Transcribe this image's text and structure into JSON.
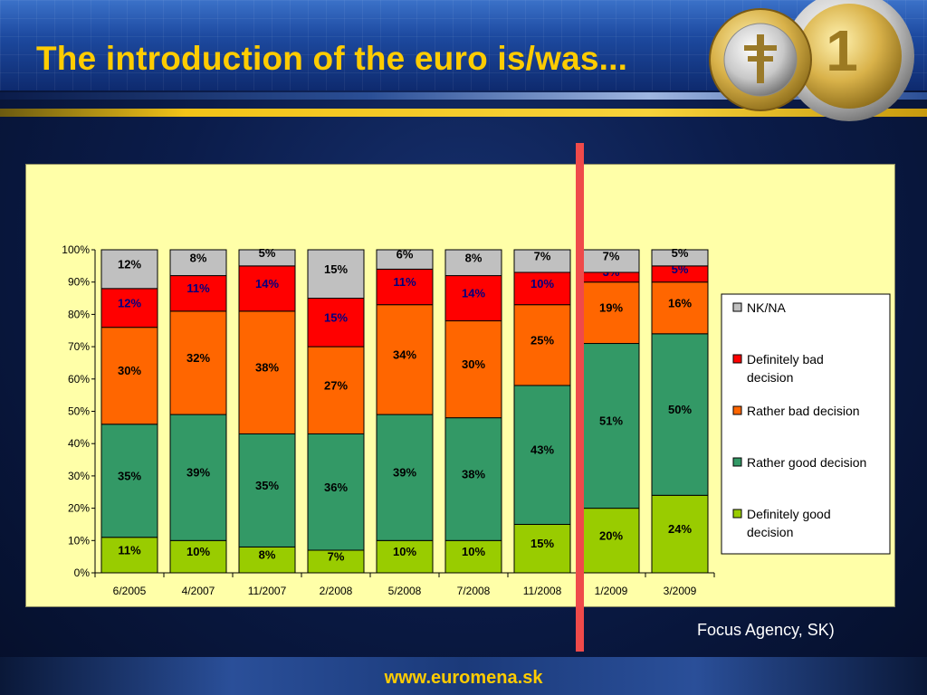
{
  "slide": {
    "title": "The introduction of the euro is/was...",
    "source": "Focus Agency, SK)",
    "url": "www.euromena.sk"
  },
  "colors": {
    "definitely_good": "#99cc00",
    "rather_good": "#339966",
    "rather_bad": "#ff6600",
    "definitely_bad": "#ff0000",
    "nk_na": "#c0c0c0",
    "chart_bg": "#ffffa8",
    "title": "#ffcc00",
    "marker_line": "#ef4a4a"
  },
  "chart_data": {
    "type": "bar",
    "stacked": true,
    "categories": [
      "6/2005",
      "4/2007",
      "11/2007",
      "2/2008",
      "5/2008",
      "7/2008",
      "11/2008",
      "1/2009",
      "3/2009"
    ],
    "ylim": [
      0,
      100
    ],
    "ytick_labels": [
      "0%",
      "10%",
      "20%",
      "30%",
      "40%",
      "50%",
      "60%",
      "70%",
      "80%",
      "90%",
      "100%"
    ],
    "legend_position": "right",
    "series": [
      {
        "name": "Definitely good decision",
        "color_key": "definitely_good",
        "values": [
          11,
          10,
          8,
          7,
          10,
          10,
          15,
          20,
          24
        ]
      },
      {
        "name": "Rather good decision",
        "color_key": "rather_good",
        "values": [
          35,
          39,
          35,
          36,
          39,
          38,
          43,
          51,
          50
        ]
      },
      {
        "name": "Rather bad decision",
        "color_key": "rather_bad",
        "values": [
          30,
          32,
          38,
          27,
          34,
          30,
          25,
          19,
          16
        ]
      },
      {
        "name": "Definitely bad decision",
        "color_key": "definitely_bad",
        "values": [
          12,
          11,
          14,
          15,
          11,
          14,
          10,
          3,
          5
        ]
      },
      {
        "name": "NK/NA",
        "color_key": "nk_na",
        "values": [
          12,
          8,
          5,
          15,
          6,
          8,
          7,
          7,
          5
        ]
      }
    ],
    "legend_order": [
      "NK/NA",
      "Definitely bad decision",
      "Rather bad decision",
      "Rather good decision",
      "Definitely good decision"
    ]
  }
}
